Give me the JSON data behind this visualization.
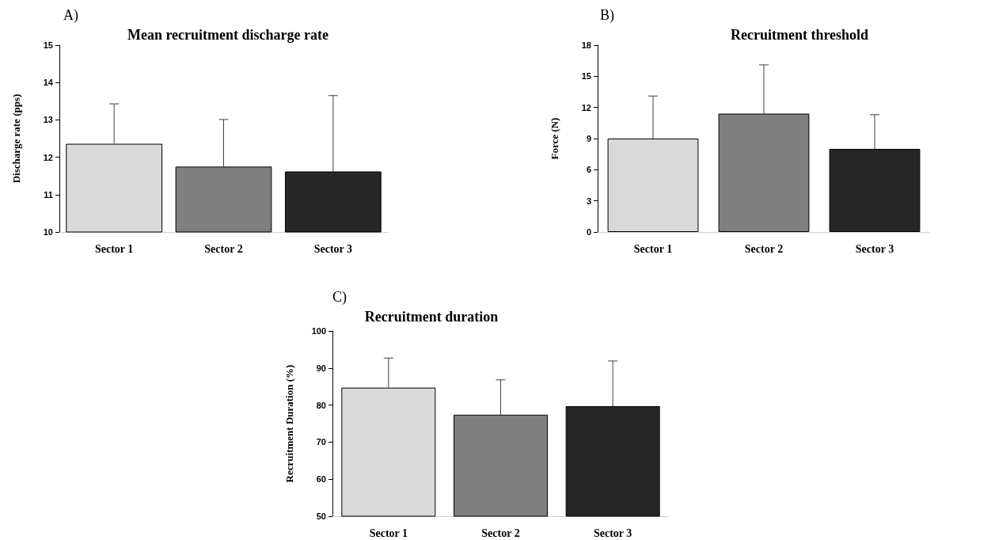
{
  "chart_data": [
    {
      "type": "bar",
      "title": "Mean recruitment discharge rate",
      "ylabel": "Discharge rate (pps)",
      "annotations": [
        "A)"
      ],
      "categories": [
        "Sector 1",
        "Sector 2",
        "Sector 3"
      ],
      "values": [
        12.36,
        11.75,
        11.62
      ],
      "colors": [
        "#d9d9d9",
        "#7f7f7f",
        "#262626"
      ],
      "errors": [
        [
          12.36,
          13.43
        ],
        [
          11.75,
          13.01
        ],
        [
          11.62,
          13.65
        ]
      ],
      "ylim": [
        10,
        15
      ],
      "yticks": [
        10,
        11,
        12,
        13,
        14,
        15
      ],
      "grid": false
    },
    {
      "type": "bar",
      "title": "Recruitment threshold",
      "ylabel": "Force (N)",
      "annotations": [
        "B)"
      ],
      "categories": [
        "Sector 1",
        "Sector 2",
        "Sector 3"
      ],
      "values": [
        9.0,
        11.4,
        8.0
      ],
      "colors": [
        "#d9d9d9",
        "#7f7f7f",
        "#262626"
      ],
      "errors": [
        [
          9.0,
          13.1
        ],
        [
          11.4,
          16.1
        ],
        [
          8.0,
          11.3
        ]
      ],
      "ylim": [
        0,
        18
      ],
      "yticks": [
        0,
        3,
        6,
        9,
        12,
        15,
        18
      ],
      "grid": false
    },
    {
      "type": "bar",
      "title": "Recruitment duration",
      "ylabel": "Recruitment Duration (%)",
      "annotations": [
        "C)"
      ],
      "categories": [
        "Sector 1",
        "Sector 2",
        "Sector 3"
      ],
      "values": [
        84.7,
        77.4,
        79.7
      ],
      "colors": [
        "#d9d9d9",
        "#7f7f7f",
        "#262626"
      ],
      "errors": [
        [
          84.7,
          92.7
        ],
        [
          77.4,
          86.8
        ],
        [
          79.7,
          91.9
        ]
      ],
      "ylim": [
        50,
        100
      ],
      "yticks": [
        50,
        60,
        70,
        80,
        90,
        100
      ],
      "grid": false
    }
  ]
}
